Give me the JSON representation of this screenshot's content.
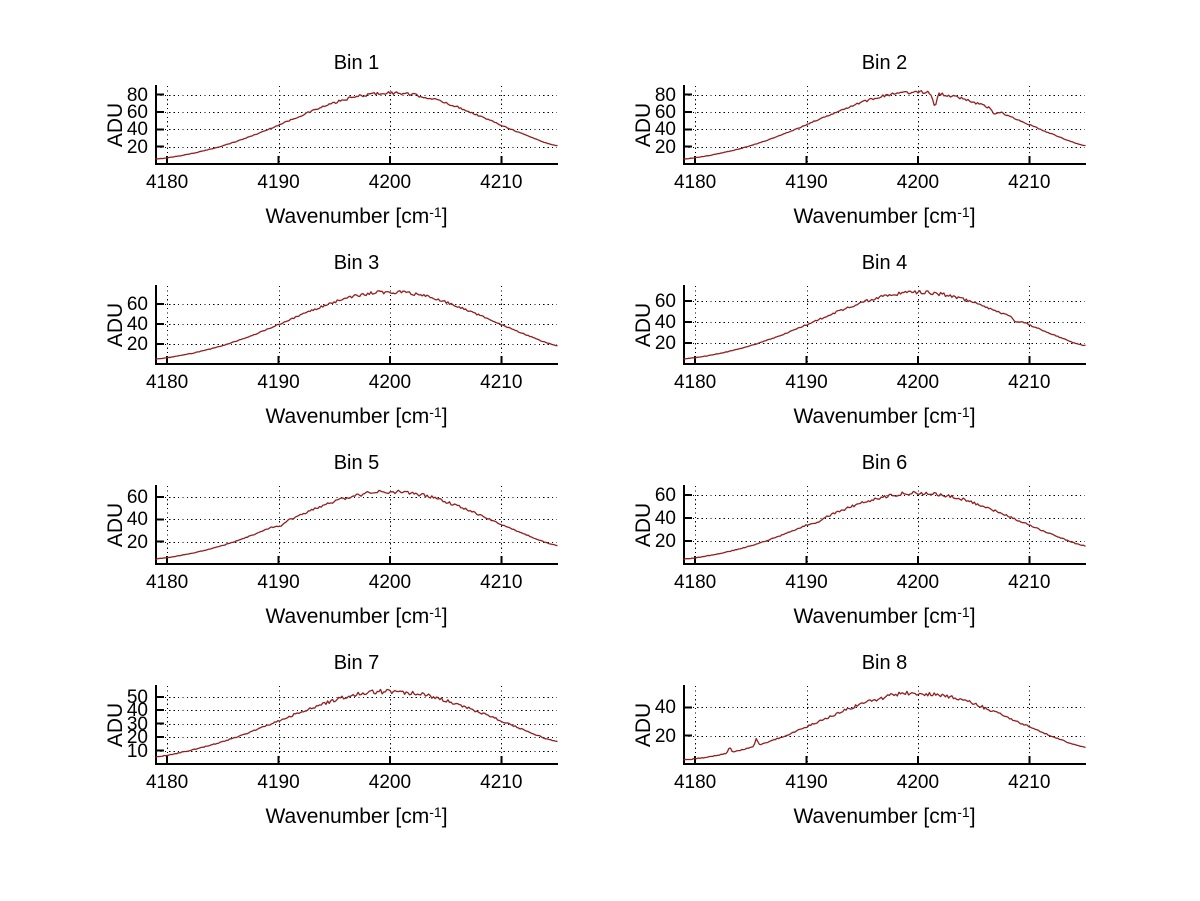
{
  "figure": {
    "background_color": "#ffffff",
    "line_color": "#8f2021",
    "axis_color": "#000000",
    "grid_color": "#000000",
    "text_color": "#000000"
  },
  "chart_data": {
    "type": "line",
    "layout": {
      "rows": 4,
      "cols": 2,
      "grid": "on",
      "legend": "none"
    },
    "ylabel": "ADU",
    "xlabel_base": "Wavenumber [cm",
    "xlabel_sup": "-1",
    "xlabel_close": "]",
    "xlim": [
      4179,
      4215
    ],
    "xticks": [
      4180,
      4190,
      4200,
      4210
    ],
    "x_samples": [
      4179,
      4182,
      4185,
      4188,
      4191,
      4194,
      4197,
      4200,
      4203,
      4206,
      4209,
      4212,
      4215
    ],
    "bins": [
      {
        "title": "Bin 1",
        "ylim": [
          0,
          90
        ],
        "yticks": [
          20,
          40,
          60,
          80
        ],
        "peak": {
          "center": 4200,
          "height": 82
        },
        "values": [
          5.7,
          11.6,
          21.1,
          34.4,
          50.3,
          66.0,
          77.7,
          82.0,
          77.7,
          66.0,
          50.3,
          34.4,
          21.1
        ],
        "anomalies": []
      },
      {
        "title": "Bin 2",
        "ylim": [
          0,
          90
        ],
        "yticks": [
          20,
          40,
          60,
          80
        ],
        "peak": {
          "center": 4200,
          "height": 83
        },
        "values": [
          5.8,
          11.7,
          21.3,
          34.8,
          50.9,
          66.8,
          78.6,
          83.0,
          78.6,
          66.8,
          50.9,
          34.8,
          21.3
        ],
        "anomalies": [
          {
            "x": 4201.5,
            "dy": -15,
            "w": 0.16
          },
          {
            "x": 4206.9,
            "dy": -5,
            "w": 0.2
          }
        ]
      },
      {
        "title": "Bin 3",
        "ylim": [
          0,
          78
        ],
        "yticks": [
          20,
          40,
          60
        ],
        "peak": {
          "center": 4200,
          "height": 72
        },
        "values": [
          5.0,
          10.2,
          18.5,
          30.2,
          44.2,
          57.9,
          68.2,
          72.0,
          68.2,
          57.9,
          44.2,
          30.2,
          18.5
        ],
        "anomalies": []
      },
      {
        "title": "Bin 4",
        "ylim": [
          0,
          74
        ],
        "yticks": [
          20,
          40,
          60
        ],
        "peak": {
          "center": 4200,
          "height": 68
        },
        "values": [
          4.8,
          9.6,
          17.5,
          28.5,
          41.7,
          54.7,
          64.4,
          68.0,
          64.4,
          54.7,
          41.7,
          28.5,
          17.5
        ],
        "anomalies": [
          {
            "x": 4208.8,
            "dy": -3,
            "w": 0.2
          }
        ]
      },
      {
        "title": "Bin 5",
        "ylim": [
          0,
          70
        ],
        "yticks": [
          20,
          40,
          60
        ],
        "peak": {
          "center": 4200,
          "height": 65
        },
        "values": [
          4.5,
          9.2,
          16.7,
          27.2,
          39.9,
          52.3,
          61.6,
          65.0,
          61.6,
          52.3,
          39.9,
          27.2,
          16.7
        ],
        "anomalies": [
          {
            "x": 4190.2,
            "dy": -2.5,
            "w": 0.3
          }
        ]
      },
      {
        "title": "Bin 6",
        "ylim": [
          0,
          68
        ],
        "yticks": [
          20,
          40,
          60
        ],
        "peak": {
          "center": 4200,
          "height": 62
        },
        "values": [
          4.3,
          8.8,
          15.9,
          26.0,
          38.0,
          49.9,
          58.7,
          62.0,
          58.7,
          49.9,
          38.0,
          26.0,
          15.9
        ],
        "anomalies": [
          {
            "x": 4191.0,
            "dy": -2,
            "w": 0.3
          }
        ]
      },
      {
        "title": "Bin 7",
        "ylim": [
          0,
          58
        ],
        "yticks": [
          10,
          20,
          30,
          40,
          50
        ],
        "peak": {
          "center": 4200,
          "height": 54
        },
        "values": [
          5.4,
          10.0,
          16.7,
          25.5,
          35.4,
          44.8,
          51.5,
          54.0,
          51.5,
          44.8,
          35.4,
          25.5,
          16.7
        ],
        "anomalies": []
      },
      {
        "title": "Bin 8",
        "ylim": [
          0,
          55
        ],
        "yticks": [
          20,
          40
        ],
        "peak": {
          "center": 4200,
          "height": 50
        },
        "values": [
          2.9,
          6.2,
          11.7,
          19.7,
          29.6,
          39.6,
          47.2,
          50.0,
          47.2,
          39.6,
          29.6,
          19.7,
          11.7
        ],
        "anomalies": [
          {
            "x": 4183.1,
            "dy": 4,
            "w": 0.12
          },
          {
            "x": 4185.5,
            "dy": 5,
            "w": 0.12
          }
        ]
      }
    ]
  }
}
